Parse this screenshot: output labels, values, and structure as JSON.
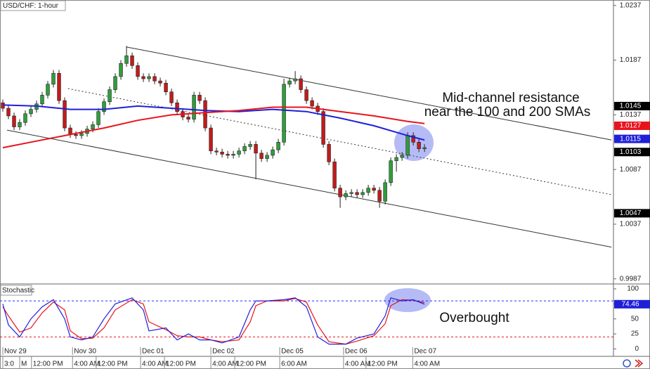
{
  "chart_data": {
    "type": "candlestick",
    "title": "USD/CHF: 1-hour",
    "xlim": [
      -0.5,
      108.6
    ],
    "ylim": [
      0.9983,
      1.0242
    ],
    "yticks": [
      1.0237,
      1.0187,
      1.0137,
      1.0087,
      1.0037,
      0.9987
    ],
    "price_markers": [
      {
        "value": 1.0145,
        "color": "#000000"
      },
      {
        "value": 1.0127,
        "color": "#e8141c"
      },
      {
        "value": 1.0115,
        "color": "#1f1fd8"
      },
      {
        "value": 1.0103,
        "color": "#000000"
      },
      {
        "value": 1.0047,
        "color": "#000000"
      }
    ],
    "up_color": "#2e9e3a",
    "down_color": "#c41a1a",
    "candles": {
      "open": [
        1.0148,
        1.0143,
        1.0136,
        1.0126,
        1.013,
        1.0138,
        1.0142,
        1.0147,
        1.0155,
        1.0165,
        1.0175,
        1.015,
        1.0125,
        1.0119,
        1.0118,
        1.012,
        1.0124,
        1.0128,
        1.014,
        1.0149,
        1.016,
        1.0172,
        1.0184,
        1.0191,
        1.0182,
        1.0172,
        1.017,
        1.0172,
        1.0168,
        1.0166,
        1.0158,
        1.0148,
        1.014,
        1.0135,
        1.0133,
        1.0155,
        1.015,
        1.0125,
        1.0104,
        1.0103,
        1.0101,
        1.01,
        1.0101,
        1.0104,
        1.0108,
        1.011,
        1.0102,
        1.0097,
        1.01,
        1.0105,
        1.0112,
        1.0165,
        1.0168,
        1.017,
        1.016,
        1.015,
        1.0145,
        1.014,
        1.011,
        1.0094,
        1.007,
        1.0062,
        1.0065,
        1.0066,
        1.0064,
        1.0066,
        1.007,
        1.0068,
        1.0058,
        1.0075,
        1.0095,
        1.0098,
        1.01,
        1.0118,
        1.0112,
        1.0106
      ],
      "high": [
        1.0151,
        1.0146,
        1.0139,
        1.0133,
        1.0141,
        1.0145,
        1.015,
        1.0158,
        1.0168,
        1.0178,
        1.0178,
        1.0153,
        1.0128,
        1.0122,
        1.0123,
        1.0127,
        1.0131,
        1.0143,
        1.0152,
        1.0163,
        1.0175,
        1.0187,
        1.02,
        1.0194,
        1.0185,
        1.0175,
        1.0175,
        1.0175,
        1.0171,
        1.0169,
        1.0161,
        1.0151,
        1.0143,
        1.0138,
        1.0158,
        1.0158,
        1.0153,
        1.0128,
        1.0107,
        1.0106,
        1.0104,
        1.0104,
        1.0107,
        1.0111,
        1.0113,
        1.0113,
        1.0105,
        1.0103,
        1.0108,
        1.0115,
        1.017,
        1.0171,
        1.0177,
        1.0173,
        1.0163,
        1.0153,
        1.0148,
        1.0143,
        1.0113,
        1.0097,
        1.0073,
        1.0068,
        1.0069,
        1.0069,
        1.0069,
        1.0073,
        1.0073,
        1.0071,
        1.0078,
        1.0098,
        1.0101,
        1.0103,
        1.0121,
        1.0121,
        1.0115,
        1.011
      ],
      "low": [
        1.014,
        1.0133,
        1.0123,
        1.0123,
        1.0127,
        1.0135,
        1.0139,
        1.0144,
        1.0152,
        1.0162,
        1.0147,
        1.0122,
        1.0116,
        1.0115,
        1.0115,
        1.0117,
        1.0121,
        1.0125,
        1.0137,
        1.0146,
        1.0157,
        1.0169,
        1.0181,
        1.0179,
        1.0169,
        1.0167,
        1.0167,
        1.0165,
        1.0163,
        1.0155,
        1.0145,
        1.0137,
        1.0132,
        1.013,
        1.013,
        1.0147,
        1.0122,
        1.0101,
        1.01,
        1.0098,
        1.0097,
        1.0097,
        1.0098,
        1.0101,
        1.0105,
        1.0078,
        1.0094,
        1.0094,
        1.0097,
        1.0102,
        1.0109,
        1.0162,
        1.0165,
        1.0157,
        1.0147,
        1.0142,
        1.0137,
        1.0107,
        1.0091,
        1.0067,
        1.0052,
        1.0059,
        1.0062,
        1.0061,
        1.0061,
        1.0063,
        1.0065,
        1.0052,
        1.0055,
        1.0072,
        1.0085,
        1.0095,
        1.0097,
        1.0109,
        1.0103,
        1.0103
      ],
      "close": [
        1.0143,
        1.0136,
        1.0126,
        1.013,
        1.0138,
        1.0142,
        1.0147,
        1.0155,
        1.0165,
        1.0175,
        1.015,
        1.0125,
        1.0119,
        1.0118,
        1.012,
        1.0124,
        1.0128,
        1.014,
        1.0149,
        1.016,
        1.0172,
        1.0184,
        1.0191,
        1.0182,
        1.0172,
        1.017,
        1.0172,
        1.0168,
        1.0166,
        1.0158,
        1.0148,
        1.014,
        1.0135,
        1.0133,
        1.0155,
        1.015,
        1.0125,
        1.0104,
        1.0103,
        1.0101,
        1.01,
        1.0101,
        1.0104,
        1.0108,
        1.011,
        1.0102,
        1.0097,
        1.01,
        1.0105,
        1.0112,
        1.0165,
        1.0168,
        1.017,
        1.016,
        1.015,
        1.0145,
        1.014,
        1.011,
        1.0094,
        1.007,
        1.0062,
        1.0065,
        1.0066,
        1.0064,
        1.0066,
        1.007,
        1.0068,
        1.0058,
        1.0075,
        1.0095,
        1.0098,
        1.01,
        1.0118,
        1.0112,
        1.0106,
        1.0107
      ]
    },
    "sma": [
      {
        "color": "#1f1fd8",
        "x": [
          0,
          6,
          12,
          18,
          24,
          30,
          36,
          42,
          48,
          54,
          60,
          66,
          72,
          75
        ],
        "values": [
          1.0146,
          1.0145,
          1.0142,
          1.0142,
          1.0145,
          1.0143,
          1.0141,
          1.014,
          1.0142,
          1.014,
          1.0134,
          1.0127,
          1.0118,
          1.0114
        ]
      },
      {
        "color": "#e8141c",
        "x": [
          0,
          6,
          12,
          18,
          24,
          30,
          36,
          42,
          48,
          54,
          60,
          66,
          72,
          75
        ],
        "values": [
          1.0107,
          1.0113,
          1.0119,
          1.0125,
          1.0132,
          1.0137,
          1.0139,
          1.0141,
          1.0144,
          1.0144,
          1.014,
          1.0136,
          1.0131,
          1.0129
        ]
      }
    ],
    "trendlines": [
      {
        "x": [
          22,
          108.25
        ],
        "values": [
          1.0199,
          1.0114
        ],
        "style": "solid"
      },
      {
        "x": [
          11.6,
          108.25
        ],
        "values": [
          1.0161,
          1.0064
        ],
        "style": "dotted"
      },
      {
        "x": [
          0.75,
          108.25
        ],
        "values": [
          1.0123,
          1.0016
        ],
        "style": "solid"
      }
    ],
    "annotations": [
      "Mid-channel resistance",
      "near the 100 and 200 SMAs",
      "Overbought"
    ],
    "date_ticks": [
      {
        "value": 0,
        "label": "Nov 29"
      },
      {
        "value": 12.4,
        "label": "Nov 30"
      },
      {
        "value": 24.5,
        "label": "Dec 01"
      },
      {
        "value": 37,
        "label": "Dec 02"
      },
      {
        "value": 49.25,
        "label": "Dec 05"
      },
      {
        "value": 60.6,
        "label": "Dec 06"
      },
      {
        "value": 72.9,
        "label": "Dec 07"
      }
    ],
    "time_ticks": [
      {
        "value": 0,
        "label": "3:0"
      },
      {
        "value": 3,
        "label": "M"
      },
      {
        "value": 5.1,
        "label": "12:00 PM"
      },
      {
        "value": 12.4,
        "label": "4:00 AM"
      },
      {
        "value": 16.6,
        "label": "12:00 PM"
      },
      {
        "value": 24.5,
        "label": "4:00 AM"
      },
      {
        "value": 28.75,
        "label": "12:00 PM"
      },
      {
        "value": 37,
        "label": "4:00 AM"
      },
      {
        "value": 41.25,
        "label": "12:00 PM"
      },
      {
        "value": 49.25,
        "label": "6:00 AM"
      },
      {
        "value": 60.6,
        "label": "4:00 AM"
      },
      {
        "value": 64.6,
        "label": "12:00 PM"
      },
      {
        "value": 72.9,
        "label": "4:00 AM"
      }
    ],
    "stochastic": {
      "title": "Stochastic",
      "ylim": [
        -10,
        107
      ],
      "yticks": [
        100,
        75,
        50,
        25,
        0
      ],
      "levels": [
        {
          "value": 80,
          "color": "#2a2aff"
        },
        {
          "value": 20,
          "color": "#e8141c"
        }
      ],
      "x": [
        0,
        1,
        3,
        5,
        7,
        9,
        11,
        12,
        14,
        16,
        18,
        20,
        23,
        25,
        26,
        29,
        31,
        33,
        35,
        37,
        39,
        42,
        44,
        45,
        47,
        50,
        52,
        54,
        56,
        58,
        61,
        63,
        66,
        68,
        69,
        71,
        73,
        75
      ],
      "k": {
        "color": "#1f1fd8",
        "values": [
          75,
          40,
          20,
          50,
          70,
          82,
          50,
          20,
          15,
          20,
          50,
          75,
          85,
          65,
          30,
          35,
          15,
          25,
          15,
          15,
          10,
          20,
          65,
          80,
          80,
          82,
          85,
          70,
          20,
          8,
          8,
          18,
          25,
          55,
          85,
          80,
          82,
          74.46
        ]
      },
      "d": {
        "color": "#e8141c",
        "values": [
          70,
          55,
          28,
          35,
          60,
          78,
          65,
          30,
          17,
          18,
          35,
          65,
          82,
          75,
          45,
          32,
          22,
          20,
          20,
          15,
          12,
          15,
          45,
          72,
          80,
          80,
          84,
          78,
          40,
          12,
          8,
          13,
          22,
          42,
          72,
          82,
          81,
          77
        ]
      },
      "marker": {
        "value": 74.46,
        "color": "#1f1fd8"
      }
    }
  }
}
